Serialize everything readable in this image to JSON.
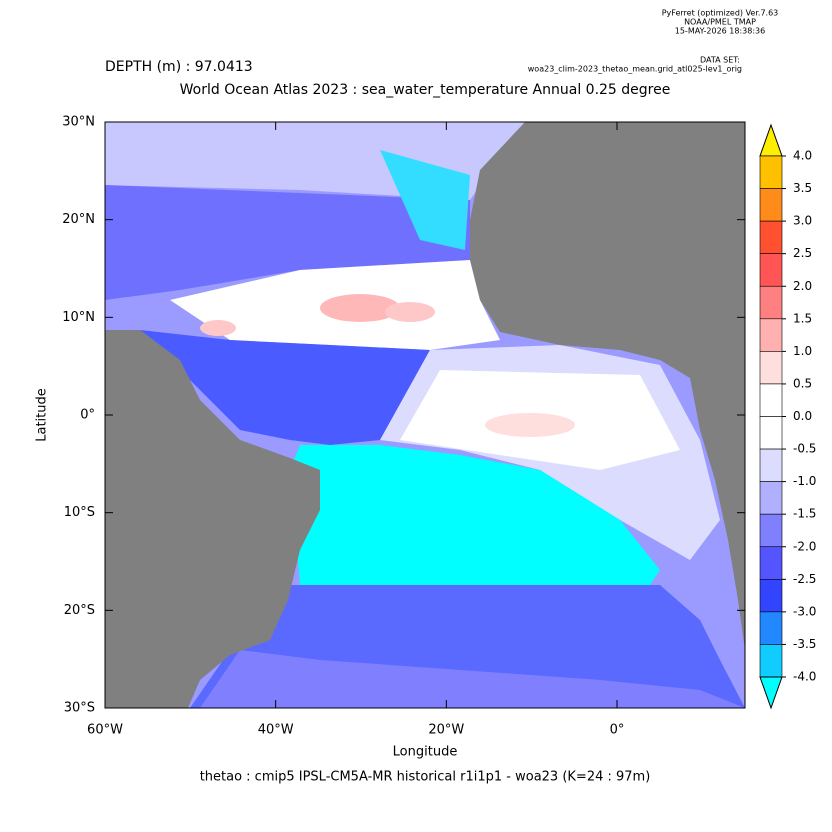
{
  "header": {
    "software": "PyFerret (optimized) Ver.7.63",
    "org": "NOAA/PMEL TMAP",
    "timestamp": "15-MAY-2026 18:38:36",
    "dataset_label": "DATA SET:",
    "dataset": "woa23_clim-2023_thetao_mean.grid_atl025-lev1_orig"
  },
  "chart_data": {
    "type": "map",
    "subtitle": "DEPTH (m) : 97.0413",
    "title": "World Ocean Atlas 2023 : sea_water_temperature Annual  0.25 degree",
    "x_label": "Longitude",
    "y_label": "Latitude",
    "caption": "thetao : cmip5 IPSL-CM5A-MR historical r1i1p1 - woa23  (K=24 : 97m)",
    "xlim": [
      -60,
      15
    ],
    "ylim": [
      -30,
      30
    ],
    "xticks": [
      {
        "value": -60,
        "label": "60°W"
      },
      {
        "value": -40,
        "label": "40°W"
      },
      {
        "value": -20,
        "label": "20°W"
      },
      {
        "value": 0,
        "label": "0°"
      }
    ],
    "yticks": [
      {
        "value": 30,
        "label": "30°N"
      },
      {
        "value": 20,
        "label": "20°N"
      },
      {
        "value": 10,
        "label": "10°N"
      },
      {
        "value": 0,
        "label": "0°"
      },
      {
        "value": -10,
        "label": "10°S"
      },
      {
        "value": -20,
        "label": "20°S"
      },
      {
        "value": -30,
        "label": "30°S"
      }
    ],
    "land_color": "#808080",
    "colorbar": {
      "levels": [
        {
          "value": 4,
          "label": "4.0"
        },
        {
          "value": 3.5,
          "label": "3.5"
        },
        {
          "value": 3,
          "label": "3.0"
        },
        {
          "value": 2.5,
          "label": "2.5"
        },
        {
          "value": 2,
          "label": "2.0"
        },
        {
          "value": 1.5,
          "label": "1.5"
        },
        {
          "value": 1,
          "label": "1.0"
        },
        {
          "value": 0.5,
          "label": "0.5"
        },
        {
          "value": 0,
          "label": "0.0"
        },
        {
          "value": -0.5,
          "label": "-0.5"
        },
        {
          "value": -1,
          "label": "-1.0"
        },
        {
          "value": -1.5,
          "label": "-1.5"
        },
        {
          "value": -2,
          "label": "-2.0"
        },
        {
          "value": -2.5,
          "label": "-2.5"
        },
        {
          "value": -3,
          "label": "-3.0"
        },
        {
          "value": -3.5,
          "label": "-3.5"
        },
        {
          "value": -4,
          "label": "-4.0"
        }
      ],
      "colors": [
        "#ffee00",
        "#ffc000",
        "#ff8c1a",
        "#ff5030",
        "#ff5555",
        "#ff8080",
        "#ffb0b0",
        "#ffdede",
        "#ffffff",
        "#ffffff",
        "#dcdcff",
        "#b0b0ff",
        "#8080ff",
        "#5555ff",
        "#3344ff",
        "#2288ff",
        "#11ccff",
        "#00ffff"
      ]
    }
  }
}
